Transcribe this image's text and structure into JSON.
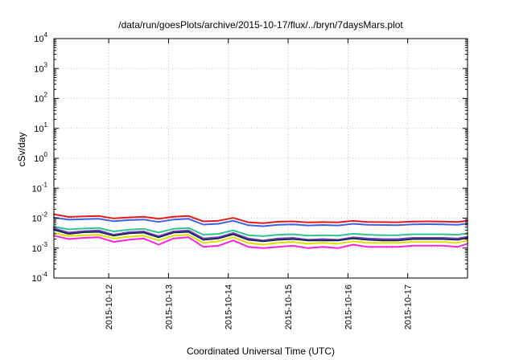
{
  "chart_data": {
    "type": "line",
    "title": "/data/run/goesPlots/archive/2015-10-17/flux/../bryn/7daysMars.plot",
    "xlabel": "Coordinated Universal Time (UTC)",
    "ylabel": "cSv/day",
    "yscale": "log",
    "ylim": [
      0.0001,
      10000
    ],
    "xlim": [
      "2015-10-11T02:00",
      "2015-10-18T00:00"
    ],
    "grid": true,
    "legend": "none",
    "x_tick_labels": [
      "2015-10-12",
      "2015-10-13",
      "2015-10-14",
      "2015-10-15",
      "2015-10-16",
      "2015-10-17"
    ],
    "y_tick_labels": [
      {
        "base": "10",
        "exp": "-4",
        "value": 0.0001
      },
      {
        "base": "10",
        "exp": "-3",
        "value": 0.001
      },
      {
        "base": "10",
        "exp": "-2",
        "value": 0.01
      },
      {
        "base": "10",
        "exp": "-1",
        "value": 0.1
      },
      {
        "base": "10",
        "exp": "0",
        "value": 1
      },
      {
        "base": "10",
        "exp": "1",
        "value": 10
      },
      {
        "base": "10",
        "exp": "2",
        "value": 100
      },
      {
        "base": "10",
        "exp": "3",
        "value": 1000
      },
      {
        "base": "10",
        "exp": "4",
        "value": 10000
      }
    ],
    "x": [
      "2015-10-11T02:00",
      "2015-10-11T08:00",
      "2015-10-11T14:00",
      "2015-10-11T20:00",
      "2015-10-12T02:00",
      "2015-10-12T08:00",
      "2015-10-12T14:00",
      "2015-10-12T20:00",
      "2015-10-13T02:00",
      "2015-10-13T08:00",
      "2015-10-13T14:00",
      "2015-10-13T20:00",
      "2015-10-14T02:00",
      "2015-10-14T08:00",
      "2015-10-14T14:00",
      "2015-10-14T20:00",
      "2015-10-15T02:00",
      "2015-10-15T08:00",
      "2015-10-15T14:00",
      "2015-10-15T20:00",
      "2015-10-16T02:00",
      "2015-10-16T08:00",
      "2015-10-16T14:00",
      "2015-10-16T20:00",
      "2015-10-17T02:00",
      "2015-10-17T08:00",
      "2015-10-17T14:00",
      "2015-10-17T20:00",
      "2015-10-18T00:00"
    ],
    "series": [
      {
        "color": "#e41a1c",
        "values": [
          0.0135,
          0.011,
          0.0115,
          0.0118,
          0.0098,
          0.0106,
          0.0112,
          0.0095,
          0.0112,
          0.0118,
          0.0078,
          0.0082,
          0.0102,
          0.0073,
          0.0068,
          0.0076,
          0.0078,
          0.0072,
          0.0074,
          0.0072,
          0.0081,
          0.0075,
          0.0074,
          0.0073,
          0.0077,
          0.0078,
          0.0077,
          0.0075,
          0.0082
        ]
      },
      {
        "color": "#3f5fe6",
        "values": [
          0.0105,
          0.0089,
          0.0093,
          0.0095,
          0.0079,
          0.0086,
          0.009,
          0.0075,
          0.009,
          0.0095,
          0.0061,
          0.0065,
          0.0082,
          0.0058,
          0.0054,
          0.006,
          0.0062,
          0.0057,
          0.0059,
          0.0057,
          0.0065,
          0.006,
          0.0059,
          0.0058,
          0.0062,
          0.0063,
          0.0062,
          0.006,
          0.0066
        ]
      },
      {
        "color": "#2ec491",
        "values": [
          0.0052,
          0.0042,
          0.0045,
          0.0047,
          0.0036,
          0.0041,
          0.0044,
          0.0033,
          0.0044,
          0.0047,
          0.0028,
          0.003,
          0.0039,
          0.0027,
          0.0025,
          0.0028,
          0.0029,
          0.0026,
          0.0027,
          0.0026,
          0.003,
          0.0028,
          0.0027,
          0.0027,
          0.0029,
          0.0029,
          0.0029,
          0.0028,
          0.0031
        ]
      },
      {
        "color": "#7f3fbf",
        "values": [
          0.0046,
          0.0033,
          0.0037,
          0.0039,
          0.0028,
          0.0034,
          0.0036,
          0.0025,
          0.0036,
          0.0039,
          0.0021,
          0.0023,
          0.0032,
          0.0021,
          0.0018,
          0.0021,
          0.0022,
          0.0019,
          0.002,
          0.0019,
          0.0023,
          0.0021,
          0.002,
          0.002,
          0.0022,
          0.0022,
          0.0022,
          0.0021,
          0.0024
        ]
      },
      {
        "color": "#1a2a5a",
        "values": [
          0.0041,
          0.003,
          0.0034,
          0.0035,
          0.0026,
          0.0031,
          0.0033,
          0.0023,
          0.0033,
          0.0035,
          0.0019,
          0.0021,
          0.0029,
          0.0019,
          0.0017,
          0.0019,
          0.002,
          0.0018,
          0.0018,
          0.0018,
          0.0021,
          0.0019,
          0.0018,
          0.0018,
          0.002,
          0.002,
          0.002,
          0.0019,
          0.0022
        ]
      },
      {
        "color": "#e0e000",
        "values": [
          0.0032,
          0.0025,
          0.0027,
          0.0028,
          0.0021,
          0.0024,
          0.0026,
          0.0018,
          0.0026,
          0.0028,
          0.0015,
          0.0017,
          0.0023,
          0.0015,
          0.0013,
          0.0015,
          0.0016,
          0.0014,
          0.0015,
          0.0014,
          0.0017,
          0.0015,
          0.0015,
          0.0015,
          0.0016,
          0.0016,
          0.0016,
          0.0015,
          0.0018
        ]
      },
      {
        "color": "#ff22dd",
        "values": [
          0.0026,
          0.002,
          0.0022,
          0.0023,
          0.0016,
          0.0019,
          0.0021,
          0.0013,
          0.0021,
          0.0023,
          0.0011,
          0.0012,
          0.0018,
          0.0011,
          0.001,
          0.0011,
          0.0012,
          0.001,
          0.0011,
          0.001,
          0.0013,
          0.0011,
          0.0011,
          0.0011,
          0.0012,
          0.0012,
          0.0012,
          0.0011,
          0.0014
        ]
      }
    ]
  }
}
